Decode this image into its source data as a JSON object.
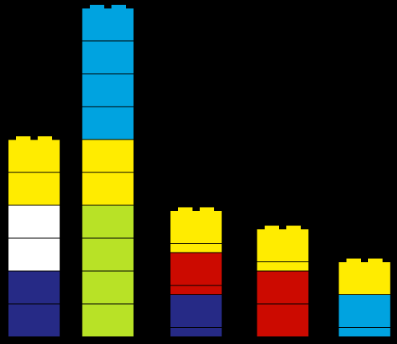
{
  "stacks": [
    {
      "bricks": [
        {
          "color": "#ffec00",
          "kind": "brick"
        },
        {
          "color": "#ffec00",
          "kind": "brick"
        },
        {
          "color": "#ffffff",
          "kind": "brick"
        },
        {
          "color": "#ffffff",
          "kind": "brick"
        },
        {
          "color": "#262a86",
          "kind": "brick"
        },
        {
          "color": "#262a86",
          "kind": "brick"
        }
      ]
    },
    {
      "bricks": [
        {
          "color": "#00a3e0",
          "kind": "brick"
        },
        {
          "color": "#00a3e0",
          "kind": "brick"
        },
        {
          "color": "#00a3e0",
          "kind": "brick"
        },
        {
          "color": "#00a3e0",
          "kind": "brick"
        },
        {
          "color": "#ffec00",
          "kind": "brick"
        },
        {
          "color": "#ffec00",
          "kind": "brick"
        },
        {
          "color": "#b8e226",
          "kind": "brick"
        },
        {
          "color": "#b8e226",
          "kind": "brick"
        },
        {
          "color": "#b8e226",
          "kind": "brick"
        },
        {
          "color": "#b8e226",
          "kind": "brick"
        }
      ]
    },
    {
      "bricks": [
        {
          "color": "#ffec00",
          "kind": "brick"
        },
        {
          "color": "#ffec00",
          "kind": "plate"
        },
        {
          "color": "#cc0a00",
          "kind": "brick"
        },
        {
          "color": "#cc0a00",
          "kind": "plate"
        },
        {
          "color": "#262a86",
          "kind": "brick"
        },
        {
          "color": "#262a86",
          "kind": "plate"
        }
      ]
    },
    {
      "bricks": [
        {
          "color": "#ffec00",
          "kind": "brick"
        },
        {
          "color": "#ffec00",
          "kind": "plate"
        },
        {
          "color": "#cc0a00",
          "kind": "brick"
        },
        {
          "color": "#cc0a00",
          "kind": "brick"
        }
      ]
    },
    {
      "bricks": [
        {
          "color": "#ffec00",
          "kind": "brick"
        },
        {
          "color": "#00a3e0",
          "kind": "brick"
        },
        {
          "color": "#00a3e0",
          "kind": "plate"
        }
      ]
    }
  ]
}
